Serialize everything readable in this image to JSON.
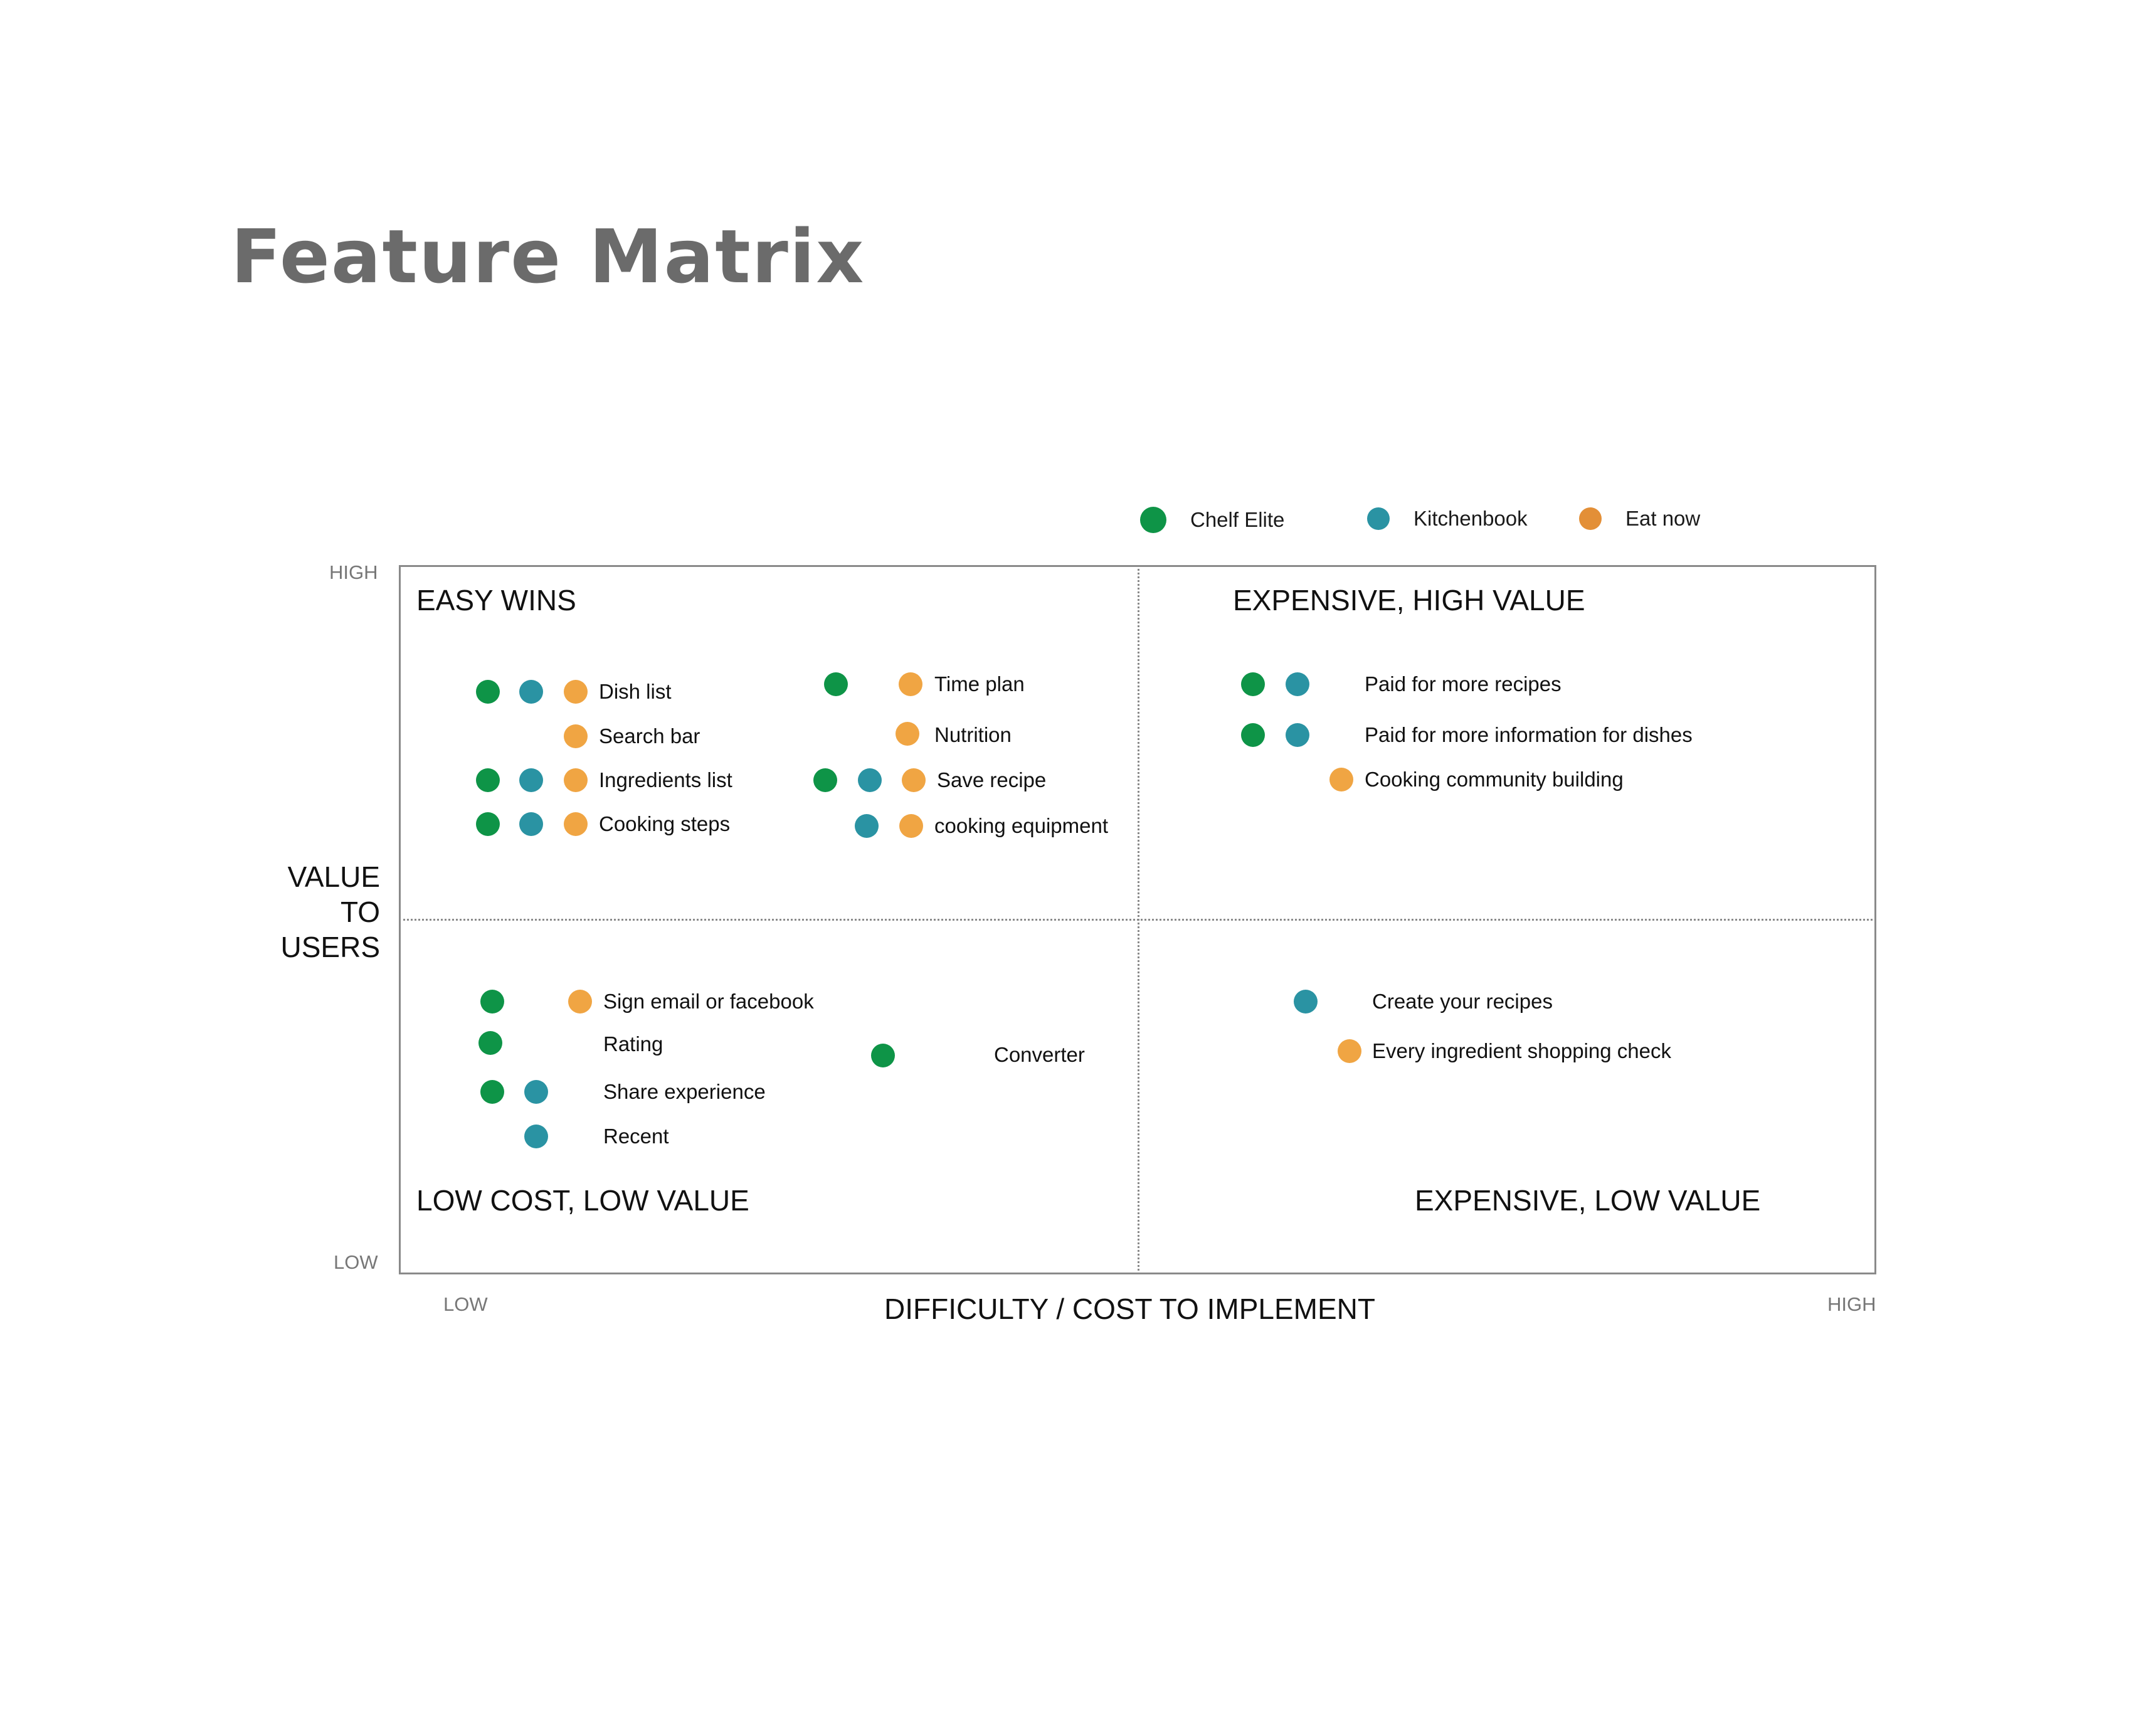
{
  "title": "Feature Matrix",
  "colors": {
    "chelf_elite": "#0e9447",
    "kitchenbook": "#2a93a3",
    "eat_now": "#f0a543",
    "legend_eat_now": "#e38f37"
  },
  "legend": [
    {
      "name": "Chelf Elite",
      "color": "#0e9447"
    },
    {
      "name": "Kitchenbook",
      "color": "#2a93a3"
    },
    {
      "name": "Eat now",
      "color": "#e38f37"
    }
  ],
  "axes": {
    "y_label_lines": [
      "VALUE",
      "TO",
      "USERS"
    ],
    "y_high": "HIGH",
    "y_low": "LOW",
    "x_label": "DIFFICULTY / COST TO IMPLEMENT",
    "x_low": "LOW",
    "x_high": "HIGH"
  },
  "quadrants": {
    "top_left": "EASY WINS",
    "top_right": "EXPENSIVE, HIGH VALUE",
    "bottom_left": "LOW COST,  LOW VALUE",
    "bottom_right": "EXPENSIVE, LOW VALUE"
  },
  "features": [
    {
      "label": "Dish list",
      "apps": [
        "chelf_elite",
        "kitchenbook",
        "eat_now"
      ]
    },
    {
      "label": "Search bar",
      "apps": [
        "eat_now"
      ]
    },
    {
      "label": "Ingredients  list",
      "apps": [
        "chelf_elite",
        "kitchenbook",
        "eat_now"
      ]
    },
    {
      "label": "Cooking steps",
      "apps": [
        "chelf_elite",
        "kitchenbook",
        "eat_now"
      ]
    },
    {
      "label": "Time plan",
      "apps": [
        "chelf_elite",
        "eat_now"
      ]
    },
    {
      "label": "Nutrition",
      "apps": [
        "eat_now"
      ]
    },
    {
      "label": "Save recipe",
      "apps": [
        "chelf_elite",
        "kitchenbook",
        "eat_now"
      ]
    },
    {
      "label": "cooking equipment",
      "apps": [
        "kitchenbook",
        "eat_now"
      ]
    },
    {
      "label": "Paid for more recipes",
      "apps": [
        "chelf_elite",
        "kitchenbook"
      ]
    },
    {
      "label": "Paid for more information for dishes",
      "apps": [
        "chelf_elite",
        "kitchenbook"
      ]
    },
    {
      "label": "Cooking community building",
      "apps": [
        "eat_now"
      ]
    },
    {
      "label": "Sign email or facebook",
      "apps": [
        "chelf_elite",
        "eat_now"
      ]
    },
    {
      "label": "Rating",
      "apps": [
        "chelf_elite"
      ]
    },
    {
      "label": "Share experience",
      "apps": [
        "chelf_elite",
        "kitchenbook"
      ]
    },
    {
      "label": "Recent",
      "apps": [
        "kitchenbook"
      ]
    },
    {
      "label": "Converter",
      "apps": [
        "chelf_elite"
      ]
    },
    {
      "label": "Create your recipes",
      "apps": [
        "kitchenbook"
      ]
    },
    {
      "label": "Every ingredient shopping check",
      "apps": [
        "eat_now"
      ]
    }
  ]
}
